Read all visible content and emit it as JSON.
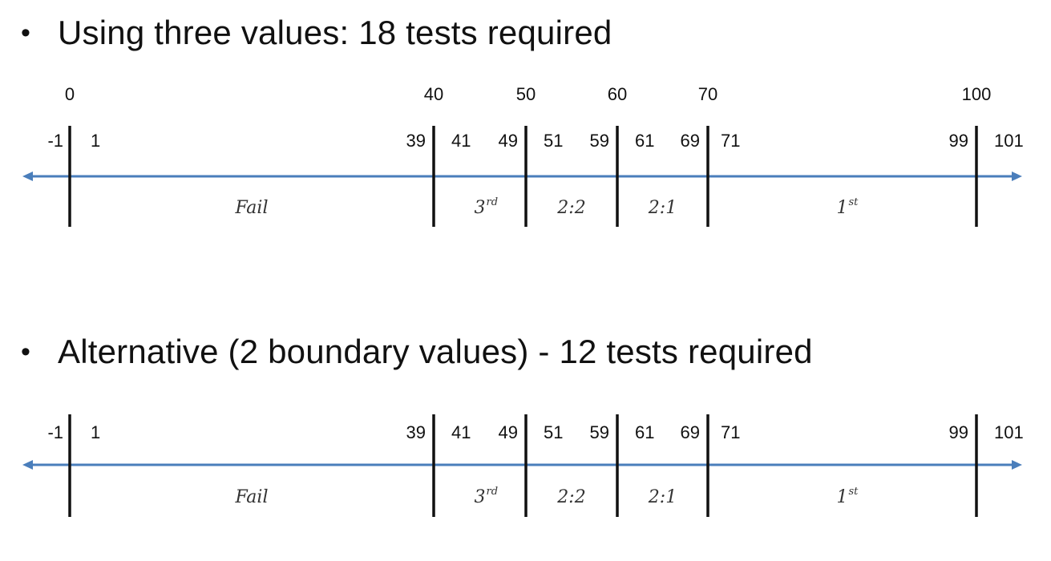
{
  "headings": {
    "three_values": "Using three values: 18 tests required",
    "alternative": "Alternative (2 boundary values) - 12 tests required",
    "bullet": "•"
  },
  "colors": {
    "axis": "#4a7ebb",
    "tick": "#111111"
  },
  "diagram1": {
    "boundary_labels": [
      "0",
      "40",
      "50",
      "60",
      "70",
      "100"
    ],
    "test_values": [
      "-1",
      "1",
      "39",
      "41",
      "49",
      "51",
      "59",
      "61",
      "69",
      "71",
      "99",
      "101"
    ],
    "regions": [
      {
        "main": "Fail",
        "sup": ""
      },
      {
        "main": "3",
        "sup": "rd"
      },
      {
        "main": "2:2",
        "sup": ""
      },
      {
        "main": "2:1",
        "sup": ""
      },
      {
        "main": "1",
        "sup": "st"
      }
    ]
  },
  "diagram2": {
    "boundary_labels": [],
    "test_values": [
      "-1",
      "1",
      "39",
      "41",
      "49",
      "51",
      "59",
      "61",
      "69",
      "71",
      "99",
      "101"
    ],
    "regions": [
      {
        "main": "Fail",
        "sup": ""
      },
      {
        "main": "3",
        "sup": "rd"
      },
      {
        "main": "2:2",
        "sup": ""
      },
      {
        "main": "2:1",
        "sup": ""
      },
      {
        "main": "1",
        "sup": "st"
      }
    ]
  }
}
